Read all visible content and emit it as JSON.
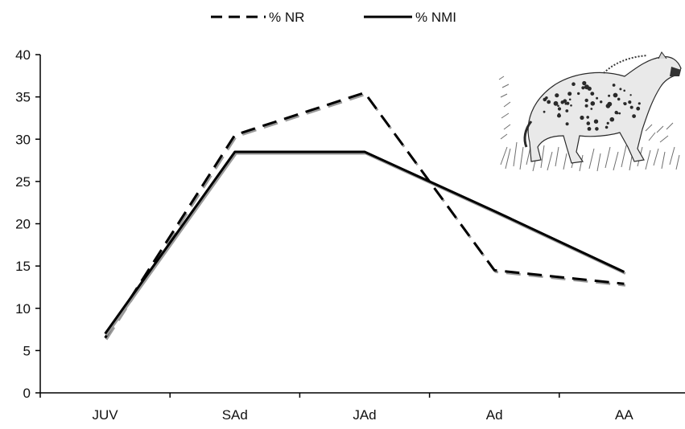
{
  "chart_data": {
    "type": "line",
    "title": "",
    "xlabel": "",
    "ylabel": "",
    "categories": [
      "JUV",
      "SAd",
      "JAd",
      "Ad",
      "AA"
    ],
    "ylim": [
      0,
      40
    ],
    "yticks": [
      "0",
      "5",
      "10",
      "15",
      "20",
      "25",
      "30",
      "35",
      "40"
    ],
    "grid": false,
    "legend_position": "top-center",
    "series": [
      {
        "name": "% NR",
        "values": [
          6.5,
          30.5,
          35.5,
          14.5,
          12.9
        ],
        "line_style": "dashed",
        "color": "#000000"
      },
      {
        "name": "% NMI",
        "values": [
          7.0,
          28.5,
          28.5,
          21.5,
          14.3
        ],
        "line_style": "solid",
        "color": "#000000"
      }
    ]
  },
  "illustration": {
    "subject": "spotted-hyena",
    "style": "pencil-sketch",
    "colors": {
      "ink": "#2a2a2a",
      "shade": "#8a8a8a",
      "grass": "#6f6f6f"
    }
  }
}
